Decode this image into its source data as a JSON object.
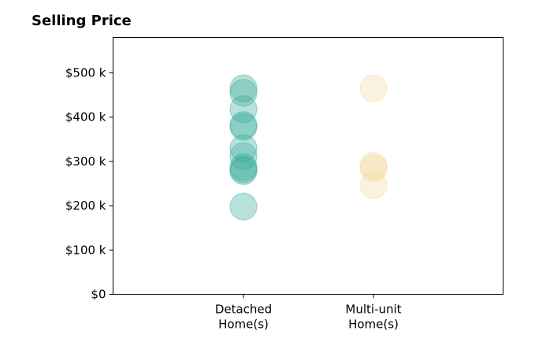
{
  "chart_data": {
    "type": "scatter",
    "title": "Selling Price",
    "xlabel": "",
    "ylabel": "",
    "categories": [
      [
        "Detached",
        "Home(s)"
      ],
      [
        "Multi-unit",
        "Home(s)"
      ]
    ],
    "y_ticks": [
      {
        "value": 0,
        "label": "$0"
      },
      {
        "value": 100000,
        "label": "$100 k"
      },
      {
        "value": 200000,
        "label": "$200 k"
      },
      {
        "value": 300000,
        "label": "$300 k"
      },
      {
        "value": 400000,
        "label": "$400 k"
      },
      {
        "value": 500000,
        "label": "$500 k"
      }
    ],
    "ylim": [
      0,
      580000
    ],
    "grid": false,
    "series": [
      {
        "category_index": 0,
        "color": "#3aab9b",
        "values": [
          465000,
          455000,
          418000,
          382000,
          378000,
          330000,
          312000,
          287000,
          282000,
          278000,
          198000
        ]
      },
      {
        "category_index": 1,
        "color": "#f0d9a0",
        "values": [
          465000,
          290000,
          285000,
          246000
        ]
      }
    ]
  }
}
